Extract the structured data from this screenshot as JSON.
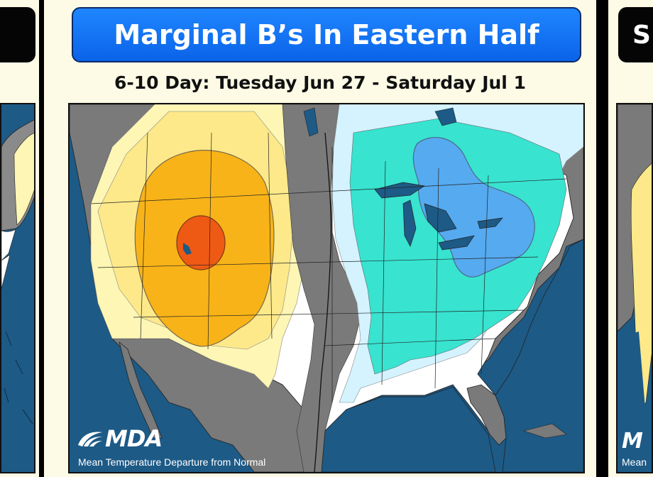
{
  "center_panel": {
    "title": "Marginal B’s In Eastern Half",
    "subtitle": "6-10 Day: Tuesday Jun 27 - Saturday Jul 1",
    "logo_text": "MDA",
    "caption": "Mean Temperature Departure from Normal"
  },
  "right_panel": {
    "title_fragment": "S",
    "logo_fragment": "M",
    "caption_fragment": "Mean"
  },
  "colors": {
    "ocean": "#1d5a86",
    "land_neutral": "#ffffff",
    "near_normal_gray": "#7a7a7a",
    "warm_pale": "#fdf6b4",
    "warm_light": "#fde98a",
    "warm_mid": "#f8b318",
    "warm_hot": "#ee5a14",
    "cool_pale": "#d4f3ff",
    "cool_cyan": "#38e3d0",
    "cool_blue": "#56aaf0",
    "title_blue": "#0b63e8"
  }
}
